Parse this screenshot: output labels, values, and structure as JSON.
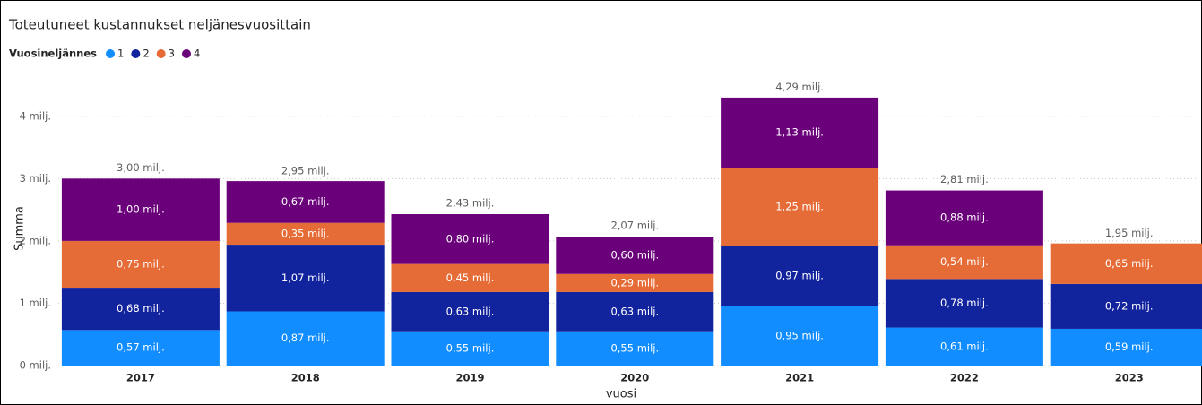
{
  "chart_data": {
    "type": "stacked_bar",
    "title": "Toteutuneet kustannukset neljänesvuosittain",
    "legend_title": "Vuosineljännes",
    "x_label": "vuosi",
    "y_label": "Summa",
    "categories": [
      "2017",
      "2018",
      "2019",
      "2020",
      "2021",
      "2022",
      "2023"
    ],
    "series": [
      {
        "name": "1",
        "color": "#118dff",
        "values": [
          0.57,
          0.87,
          0.55,
          0.55,
          0.95,
          0.61,
          0.59
        ],
        "value_labels": [
          "0,57 milj.",
          "0,87 milj.",
          "0,55 milj.",
          "0,55 milj.",
          "0,95 milj.",
          "0,61 milj.",
          "0,59 milj."
        ]
      },
      {
        "name": "2",
        "color": "#12239e",
        "values": [
          0.68,
          1.07,
          0.63,
          0.63,
          0.97,
          0.78,
          0.72
        ],
        "value_labels": [
          "0,68 milj.",
          "1,07 milj.",
          "0,63 milj.",
          "0,63 milj.",
          "0,97 milj.",
          "0,78 milj.",
          "0,72 milj."
        ]
      },
      {
        "name": "3",
        "color": "#e66c37",
        "values": [
          0.75,
          0.35,
          0.45,
          0.29,
          1.25,
          0.54,
          0.65
        ],
        "value_labels": [
          "0,75 milj.",
          "0,35 milj.",
          "0,45 milj.",
          "0,29 milj.",
          "1,25 milj.",
          "0,54 milj.",
          "0,65 milj."
        ]
      },
      {
        "name": "4",
        "color": "#6b007b",
        "values": [
          1.0,
          0.67,
          0.8,
          0.6,
          1.13,
          0.88,
          null
        ],
        "value_labels": [
          "1,00 milj.",
          "0,67 milj.",
          "0,80 milj.",
          "0,60 milj.",
          "1,13 milj.",
          "0,88 milj.",
          null
        ]
      }
    ],
    "totals": [
      3.0,
      2.95,
      2.43,
      2.07,
      4.29,
      2.81,
      1.95
    ],
    "total_labels": [
      "3,00 milj.",
      "2,95 milj.",
      "2,43 milj.",
      "2,07 milj.",
      "4,29 milj.",
      "2,81 milj.",
      "1,95 milj."
    ],
    "ylim": [
      0,
      4.5
    ],
    "yticks": [
      {
        "value": 0,
        "label": "0 milj."
      },
      {
        "value": 1,
        "label": "1 milj."
      },
      {
        "value": 2,
        "label": "2 milj."
      },
      {
        "value": 3,
        "label": "3 milj."
      },
      {
        "value": 4,
        "label": "4 milj."
      }
    ],
    "grid": true,
    "legend": "top-left"
  }
}
